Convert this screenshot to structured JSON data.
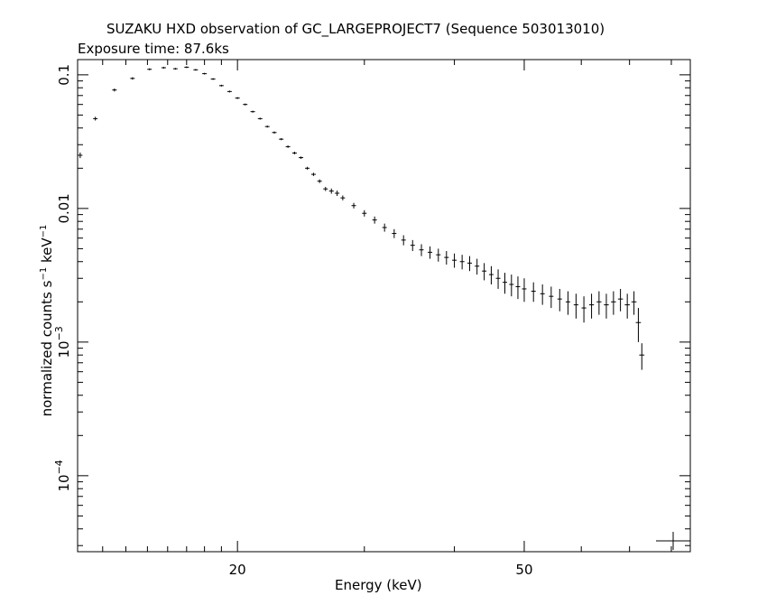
{
  "header": {
    "title": "SUZAKU HXD observation of GC_LARGEPROJECT7 (Sequence 503013010)",
    "subtitle": "Exposure time: 87.6ks"
  },
  "colors": {
    "background": "#ffffff",
    "ink": "#000000"
  },
  "chart_data": {
    "type": "scatter",
    "title": "SUZAKU HXD observation of GC_LARGEPROJECT7 (Sequence 503013010)",
    "subtitle": "Exposure time: 87.6ks",
    "xlabel": "Energy (keV)",
    "ylabel": {
      "text": "normalized counts s",
      "sup1": "−1",
      "mid": " keV",
      "sup2": "−1"
    },
    "x_scale": "log",
    "y_scale": "log",
    "xlim": [
      12.0,
      85.0
    ],
    "ylim": [
      2.7e-05,
      0.13
    ],
    "x_ticks": [
      {
        "value": 20,
        "label": "20"
      },
      {
        "value": 50,
        "label": "50"
      }
    ],
    "y_ticks": [
      {
        "value": 0.1,
        "label": "0.1"
      },
      {
        "value": 0.01,
        "label": "0.01"
      },
      {
        "value": 0.001,
        "label": "10",
        "exp": "−3"
      },
      {
        "value": 0.0001,
        "label": "10",
        "exp": "−4"
      }
    ],
    "grid": false,
    "legend": "none",
    "series": [
      {
        "x": [
          12.1,
          12.7,
          13.5,
          14.3,
          15.1,
          15.8,
          16.4,
          17.0,
          17.5,
          18.0,
          18.5,
          19.0,
          19.5,
          20.0,
          20.5,
          21.0,
          21.5,
          22.0,
          22.5,
          23.0,
          23.5,
          24.0,
          24.5,
          25.0,
          25.5,
          26.0,
          26.5,
          27.0,
          27.5,
          28.0,
          29.0,
          30.0,
          31.0,
          32.0,
          33.0,
          34.0,
          35.0,
          36.0,
          37.0,
          38.0,
          39.0,
          40.0,
          41.0,
          42.0,
          43.0,
          44.0,
          45.0,
          46.0,
          47.0,
          48.0,
          49.0,
          50.0,
          51.5,
          53.0,
          54.5,
          56.0,
          57.5,
          59.0,
          60.5,
          62.0,
          63.5,
          65.0,
          66.5,
          68.0,
          69.5,
          71.0,
          72.0,
          72.8
        ],
        "y": [
          0.025,
          0.047,
          0.077,
          0.094,
          0.11,
          0.113,
          0.111,
          0.114,
          0.109,
          0.102,
          0.093,
          0.083,
          0.075,
          0.067,
          0.06,
          0.053,
          0.047,
          0.041,
          0.037,
          0.033,
          0.029,
          0.026,
          0.024,
          0.02,
          0.018,
          0.016,
          0.014,
          0.0135,
          0.013,
          0.012,
          0.0105,
          0.0092,
          0.0082,
          0.0072,
          0.0065,
          0.0058,
          0.0053,
          0.0049,
          0.0047,
          0.0045,
          0.0043,
          0.0041,
          0.004,
          0.0039,
          0.0037,
          0.0034,
          0.0032,
          0.003,
          0.0028,
          0.0027,
          0.0026,
          0.0025,
          0.0024,
          0.0023,
          0.0022,
          0.0021,
          0.002,
          0.0019,
          0.0018,
          0.0019,
          0.002,
          0.0019,
          0.002,
          0.0021,
          0.0019,
          0.002,
          0.0014,
          0.0008
        ],
        "y_err": [
          0.0012,
          0.0015,
          0.002,
          0.002,
          0.0018,
          0.0018,
          0.0017,
          0.0017,
          0.0016,
          0.0015,
          0.0014,
          0.0013,
          0.0012,
          0.0011,
          0.001,
          0.0009,
          0.0008,
          0.0007,
          0.0007,
          0.0006,
          0.0006,
          0.0006,
          0.0005,
          0.0005,
          0.0005,
          0.0005,
          0.0005,
          0.0006,
          0.0006,
          0.0005,
          0.0005,
          0.0005,
          0.0005,
          0.0005,
          0.0005,
          0.0005,
          0.0005,
          0.0005,
          0.0005,
          0.0005,
          0.0005,
          0.0005,
          0.0005,
          0.0005,
          0.0005,
          0.0005,
          0.0005,
          0.0005,
          0.0005,
          0.0005,
          0.0005,
          0.0005,
          0.0004,
          0.0004,
          0.0004,
          0.0004,
          0.0004,
          0.0004,
          0.0004,
          0.0004,
          0.0004,
          0.0004,
          0.0004,
          0.0004,
          0.0004,
          0.0004,
          0.0004,
          0.00018
        ]
      }
    ]
  }
}
